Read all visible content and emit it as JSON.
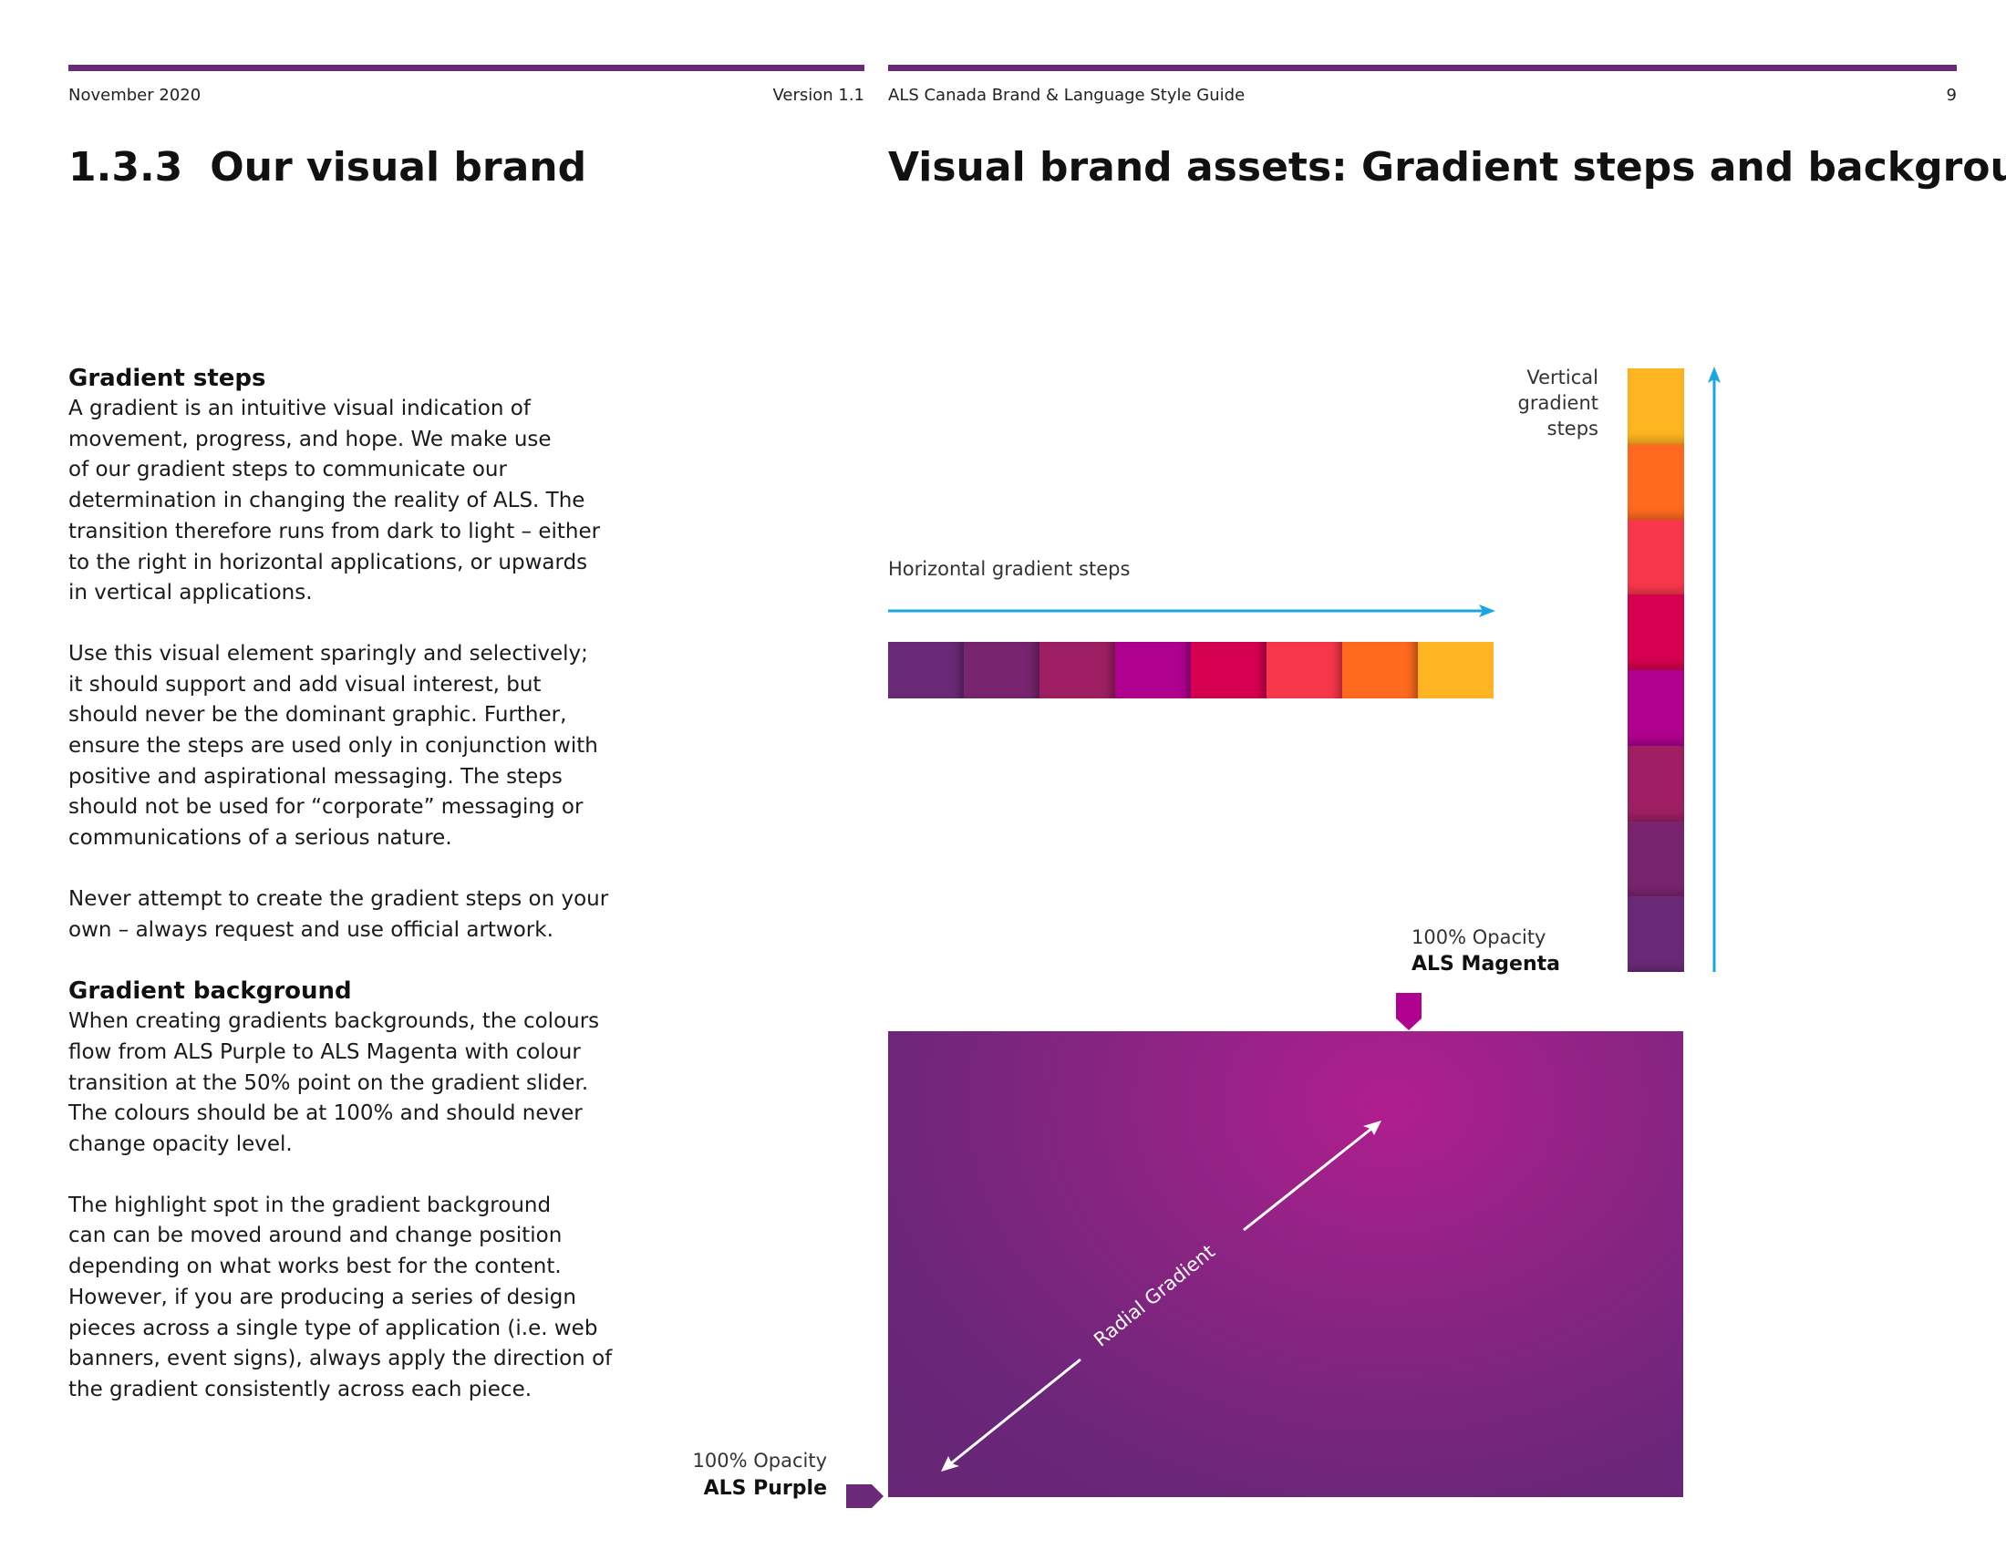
{
  "header": {
    "date": "November 2020",
    "version": "Version 1.1",
    "guide_title": "ALS Canada Brand & Language Style Guide",
    "page_number": "9"
  },
  "left": {
    "section_number": "1.3.3",
    "section_title": "Our visual brand",
    "gradient_steps": {
      "heading": "Gradient steps",
      "paragraphs": [
        [
          "A gradient is an intuitive visual indication of",
          "movement, progress, and hope. We make use",
          "of our gradient steps to communicate our",
          "determination in changing the reality of ALS. The",
          "transition therefore runs from dark to light – either",
          "to the right in horizontal applications, or upwards",
          "in vertical applications."
        ],
        [
          "Use this visual element sparingly and selectively;",
          "it should support and add visual interest, but",
          "should never be the dominant graphic. Further,",
          "ensure the steps are used only in conjunction with",
          "positive and aspirational messaging. The steps",
          "should not be used for “corporate” messaging or",
          "communications of a serious nature."
        ],
        [
          "Never attempt to create the gradient steps on your",
          "own – always request and use official artwork."
        ]
      ]
    },
    "gradient_background": {
      "heading": "Gradient background",
      "paragraphs": [
        [
          "When creating gradients backgrounds, the colours",
          "flow from ALS Purple to ALS Magenta with colour",
          "transition at the 50% point on the gradient slider.",
          "The colours should be at 100% and should never",
          "change opacity level."
        ],
        [
          "The highlight spot in the gradient background",
          "can can be moved around and change position",
          "depending on what works best for the content.",
          "However, if you are producing a series of design",
          "pieces across a single type of application (i.e. web",
          "banners, event signs), always apply the direction of",
          "the gradient consistently across each piece."
        ]
      ]
    }
  },
  "right": {
    "title": "Visual brand assets: Gradient steps and background",
    "horizontal_label": "Horizontal gradient steps",
    "vertical_label": [
      "Vertical",
      "gradient",
      "steps"
    ],
    "step_colors": [
      "#6a2a78",
      "#79246e",
      "#9e1f63",
      "#b0008f",
      "#d5004f",
      "#f8374b",
      "#ff6a1f",
      "#ffb521"
    ],
    "arrow_color": "#1aa6e0",
    "magenta": {
      "opacity": "100% Opacity",
      "name": "ALS Magenta",
      "color": "#b0008f"
    },
    "purple": {
      "opacity": "100% Opacity",
      "name": "ALS Purple",
      "color": "#6a2a78"
    },
    "radial_label": "Radial Gradient"
  }
}
